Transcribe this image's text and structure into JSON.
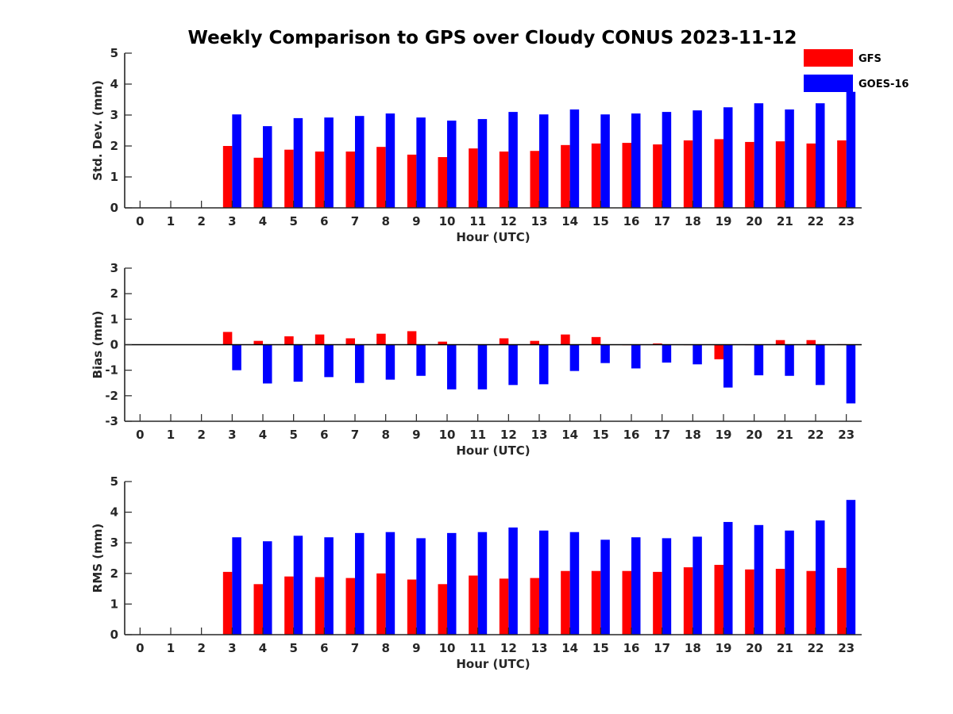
{
  "title": "Weekly Comparison to GPS over Cloudy CONUS 2023-11-12",
  "colors": {
    "GFS": "#ff0000",
    "GOES-16": "#0000ff",
    "axis": "#262626"
  },
  "legend": {
    "placement": "top-right",
    "entries": [
      "GFS",
      "GOES-16"
    ]
  },
  "chart_data": [
    {
      "type": "bar",
      "title": "",
      "xlabel": "Hour (UTC)",
      "ylabel": "Std. Dev. (mm)",
      "ylim": [
        0,
        5
      ],
      "yticks": [
        0,
        1,
        2,
        3,
        4,
        5
      ],
      "xlim": [
        -0.5,
        23.5
      ],
      "categories": [
        "0",
        "1",
        "2",
        "3",
        "4",
        "5",
        "6",
        "7",
        "8",
        "9",
        "10",
        "11",
        "12",
        "13",
        "14",
        "15",
        "16",
        "17",
        "18",
        "19",
        "20",
        "21",
        "22",
        "23"
      ],
      "series": [
        {
          "name": "GFS",
          "values": [
            null,
            null,
            null,
            2.0,
            1.62,
            1.88,
            1.82,
            1.82,
            1.97,
            1.72,
            1.64,
            1.92,
            1.82,
            1.84,
            2.03,
            2.08,
            2.1,
            2.05,
            2.18,
            2.22,
            2.13,
            2.15,
            2.08,
            2.18
          ]
        },
        {
          "name": "GOES-16",
          "values": [
            null,
            null,
            null,
            3.02,
            2.64,
            2.9,
            2.92,
            2.97,
            3.05,
            2.92,
            2.82,
            2.87,
            3.1,
            3.02,
            3.18,
            3.02,
            3.05,
            3.1,
            3.15,
            3.25,
            3.38,
            3.18,
            3.38,
            3.75
          ]
        }
      ]
    },
    {
      "type": "bar",
      "title": "",
      "xlabel": "Hour (UTC)",
      "ylabel": "Bias (mm)",
      "ylim": [
        -3,
        3
      ],
      "yticks": [
        -3,
        -2,
        -1,
        0,
        1,
        2,
        3
      ],
      "xlim": [
        -0.5,
        23.5
      ],
      "zero_line": true,
      "categories": [
        "0",
        "1",
        "2",
        "3",
        "4",
        "5",
        "6",
        "7",
        "8",
        "9",
        "10",
        "11",
        "12",
        "13",
        "14",
        "15",
        "16",
        "17",
        "18",
        "19",
        "20",
        "21",
        "22",
        "23"
      ],
      "series": [
        {
          "name": "GFS",
          "values": [
            null,
            null,
            null,
            0.5,
            0.15,
            0.33,
            0.4,
            0.25,
            0.43,
            0.53,
            0.12,
            0.0,
            0.25,
            0.15,
            0.4,
            0.3,
            -0.02,
            0.05,
            0.0,
            -0.57,
            0.0,
            0.18,
            0.18,
            0.02
          ]
        },
        {
          "name": "GOES-16",
          "values": [
            null,
            null,
            null,
            -1.0,
            -1.52,
            -1.45,
            -1.27,
            -1.5,
            -1.37,
            -1.22,
            -1.75,
            -1.75,
            -1.58,
            -1.55,
            -1.03,
            -0.72,
            -0.93,
            -0.7,
            -0.77,
            -1.68,
            -1.2,
            -1.22,
            -1.58,
            -2.3
          ]
        }
      ]
    },
    {
      "type": "bar",
      "title": "",
      "xlabel": "Hour (UTC)",
      "ylabel": "RMS (mm)",
      "ylim": [
        0,
        5
      ],
      "yticks": [
        0,
        1,
        2,
        3,
        4,
        5
      ],
      "xlim": [
        -0.5,
        23.5
      ],
      "categories": [
        "0",
        "1",
        "2",
        "3",
        "4",
        "5",
        "6",
        "7",
        "8",
        "9",
        "10",
        "11",
        "12",
        "13",
        "14",
        "15",
        "16",
        "17",
        "18",
        "19",
        "20",
        "21",
        "22",
        "23"
      ],
      "series": [
        {
          "name": "GFS",
          "values": [
            null,
            null,
            null,
            2.05,
            1.65,
            1.9,
            1.88,
            1.85,
            2.0,
            1.8,
            1.65,
            1.93,
            1.83,
            1.85,
            2.08,
            2.08,
            2.08,
            2.05,
            2.2,
            2.28,
            2.13,
            2.15,
            2.08,
            2.18
          ]
        },
        {
          "name": "GOES-16",
          "values": [
            null,
            null,
            null,
            3.18,
            3.05,
            3.23,
            3.18,
            3.32,
            3.35,
            3.15,
            3.32,
            3.35,
            3.5,
            3.4,
            3.35,
            3.1,
            3.18,
            3.15,
            3.2,
            3.68,
            3.58,
            3.4,
            3.73,
            4.4
          ]
        }
      ]
    }
  ]
}
